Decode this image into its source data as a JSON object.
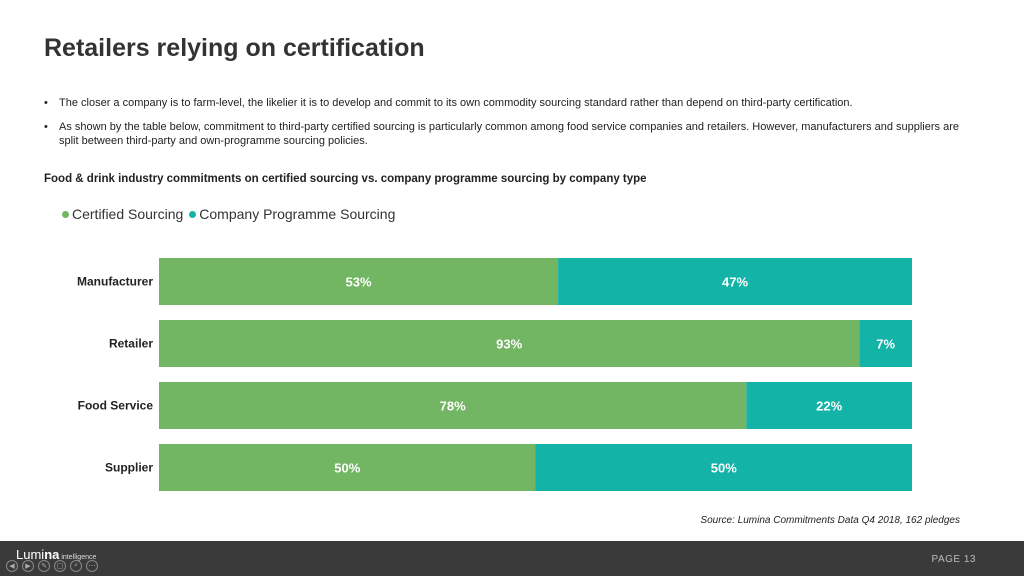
{
  "page_title": "Retailers relying on certification",
  "bullets": [
    "The closer a company is to farm-level, the likelier it is to develop and commit to its own commodity sourcing standard rather than depend on third-party certification.",
    "As shown by the table below, commitment to third-party certified sourcing is particularly common among food service companies and retailers. However, manufacturers and suppliers are split between third-party and own-programme sourcing policies."
  ],
  "chart_data": {
    "type": "bar",
    "orientation": "horizontal",
    "stacked": true,
    "title": "Food & drink industry commitments on certified sourcing vs. company programme sourcing by company type",
    "categories": [
      "Manufacturer",
      "Retailer",
      "Food Service",
      "Supplier"
    ],
    "series": [
      {
        "name": "Certified Sourcing",
        "values": [
          53,
          93,
          78,
          50
        ],
        "labels": [
          "53%",
          "93%",
          "78%",
          "50%"
        ],
        "color": "#72b562"
      },
      {
        "name": "Company Programme Sourcing",
        "values": [
          47,
          7,
          22,
          50
        ],
        "labels": [
          "47%",
          "7%",
          "22%",
          "50%"
        ],
        "color": "#13b3a7"
      }
    ],
    "xlim": [
      0,
      100
    ],
    "grid": false,
    "legend_position": "top-left"
  },
  "source": "Source: Lumina Commitments Data Q4 2018, 162 pledges",
  "footer": {
    "logo_main": "Lumi",
    "logo_bold": "na",
    "logo_sub": "intelligence",
    "page_label": "PAGE 13",
    "nav_icons": [
      "prev-icon",
      "next-icon",
      "pen-icon",
      "slides-icon",
      "zoom-icon",
      "more-icon"
    ]
  }
}
